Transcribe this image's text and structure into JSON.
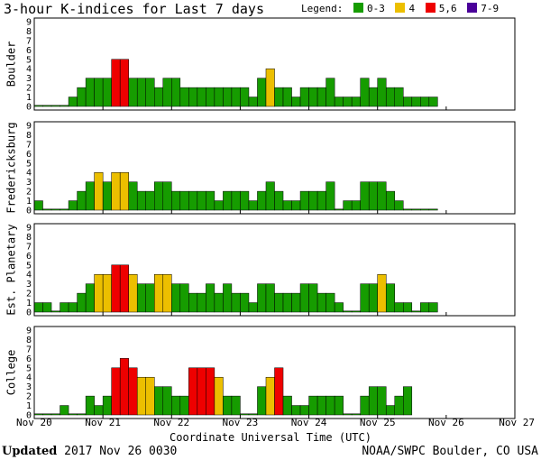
{
  "title": "3-hour K-indices for Last 7 days",
  "legend": {
    "label": "Legend:",
    "items": [
      {
        "label": "0-3",
        "color": "#169c00"
      },
      {
        "label": "4",
        "color": "#ecbf00"
      },
      {
        "label": "5,6",
        "color": "#ee0000"
      },
      {
        "label": "7-9",
        "color": "#4a0099"
      }
    ]
  },
  "footer": {
    "updated_label": "Updated",
    "updated_value": "2017 Nov 26 0030",
    "credit": "NOAA/SWPC Boulder, CO USA"
  },
  "chart_data": [
    {
      "type": "bar",
      "panel": "Boulder",
      "ylabel": "Boulder",
      "ylim": [
        0,
        9
      ],
      "yticks": [
        0,
        1,
        2,
        3,
        4,
        5,
        6,
        7,
        8,
        9
      ],
      "xlabel": "Coordinate Universal Time (UTC)",
      "xticks": [
        "Nov 20",
        "Nov 21",
        "Nov 22",
        "Nov 23",
        "Nov 24",
        "Nov 25",
        "Nov 26",
        "Nov 27"
      ],
      "x_interval_hours": 3,
      "values": [
        0,
        0,
        0,
        0,
        1,
        2,
        3,
        3,
        3,
        5,
        5,
        3,
        3,
        3,
        2,
        3,
        3,
        2,
        2,
        2,
        2,
        2,
        2,
        2,
        2,
        1,
        3,
        4,
        2,
        2,
        1,
        2,
        2,
        2,
        3,
        1,
        1,
        1,
        3,
        2,
        3,
        2,
        2,
        1,
        1,
        1,
        1,
        null,
        null,
        null,
        null,
        null,
        null,
        null,
        null,
        null
      ]
    },
    {
      "type": "bar",
      "panel": "Fredericksburg",
      "ylabel": "Fredericksburg",
      "ylim": [
        0,
        9
      ],
      "yticks": [
        0,
        1,
        2,
        3,
        4,
        5,
        6,
        7,
        8,
        9
      ],
      "xlabel": "Coordinate Universal Time (UTC)",
      "xticks": [
        "Nov 20",
        "Nov 21",
        "Nov 22",
        "Nov 23",
        "Nov 24",
        "Nov 25",
        "Nov 26",
        "Nov 27"
      ],
      "x_interval_hours": 3,
      "values": [
        1,
        0,
        0,
        0,
        1,
        2,
        3,
        4,
        3,
        4,
        4,
        3,
        2,
        2,
        3,
        3,
        2,
        2,
        2,
        2,
        2,
        1,
        2,
        2,
        2,
        1,
        2,
        3,
        2,
        1,
        1,
        2,
        2,
        2,
        3,
        0,
        1,
        1,
        3,
        3,
        3,
        2,
        1,
        0,
        0,
        0,
        0,
        null,
        null,
        null,
        null,
        null,
        null,
        null,
        null,
        null
      ]
    },
    {
      "type": "bar",
      "panel": "Est. Planetary",
      "ylabel": "Est. Planetary",
      "ylim": [
        0,
        9
      ],
      "yticks": [
        0,
        1,
        2,
        3,
        4,
        5,
        6,
        7,
        8,
        9
      ],
      "xlabel": "Coordinate Universal Time (UTC)",
      "xticks": [
        "Nov 20",
        "Nov 21",
        "Nov 22",
        "Nov 23",
        "Nov 24",
        "Nov 25",
        "Nov 26",
        "Nov 27"
      ],
      "x_interval_hours": 3,
      "values": [
        1,
        1,
        0,
        1,
        1,
        2,
        3,
        4,
        4,
        5,
        5,
        4,
        3,
        3,
        4,
        4,
        3,
        3,
        2,
        2,
        3,
        2,
        3,
        2,
        2,
        1,
        3,
        3,
        2,
        2,
        2,
        3,
        3,
        2,
        2,
        1,
        0,
        0,
        3,
        3,
        4,
        3,
        1,
        1,
        0,
        1,
        1,
        null,
        null,
        null,
        null,
        null,
        null,
        null,
        null,
        null
      ]
    },
    {
      "type": "bar",
      "panel": "College",
      "ylabel": "College",
      "ylim": [
        0,
        9
      ],
      "yticks": [
        0,
        1,
        2,
        3,
        4,
        5,
        6,
        7,
        8,
        9
      ],
      "xlabel": "Coordinate Universal Time (UTC)",
      "xticks": [
        "Nov 20",
        "Nov 21",
        "Nov 22",
        "Nov 23",
        "Nov 24",
        "Nov 25",
        "Nov 26",
        "Nov 27"
      ],
      "x_interval_hours": 3,
      "values": [
        0,
        0,
        0,
        1,
        0,
        0,
        2,
        1,
        2,
        5,
        6,
        5,
        4,
        4,
        3,
        3,
        2,
        2,
        5,
        5,
        5,
        4,
        2,
        2,
        0,
        0,
        3,
        4,
        5,
        2,
        1,
        1,
        2,
        2,
        2,
        2,
        0,
        0,
        2,
        3,
        3,
        1,
        2,
        3,
        null,
        null,
        null,
        null,
        null,
        null,
        null,
        null,
        null,
        null,
        null,
        null
      ]
    }
  ]
}
